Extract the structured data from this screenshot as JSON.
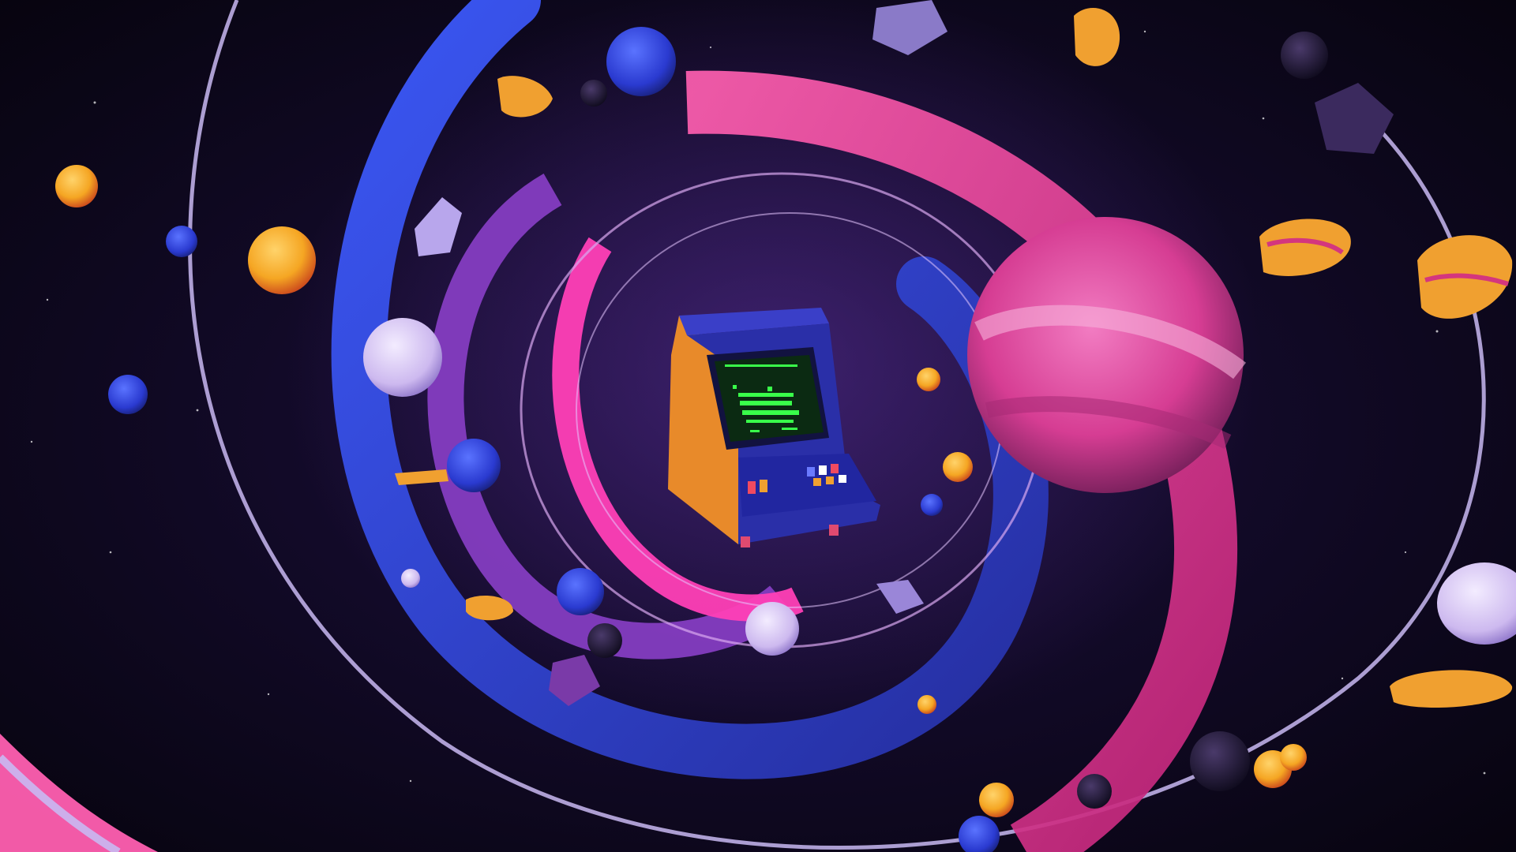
{
  "scene": {
    "subject": "arcade-cabinet",
    "background_color": "#0a0618",
    "palette": {
      "ribbon_blue": "#3a4fd8",
      "ribbon_pink": "#e0409a",
      "ribbon_violet": "#8a3fc8",
      "ring_lavender": "#c9b8f2",
      "orb_orange": "#f5a623",
      "orb_lavender": "#d8c8f0",
      "screen_green": "#39ff4a",
      "cabinet_blue": "#2a2fa8",
      "cabinet_orange": "#e88a2a"
    }
  }
}
